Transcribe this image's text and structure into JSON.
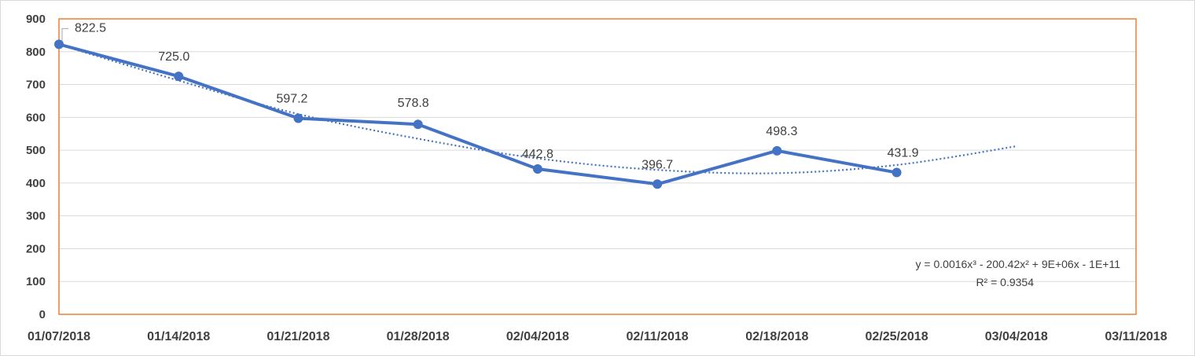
{
  "chart_data": {
    "type": "line",
    "title": "",
    "xlabel": "",
    "ylabel": "",
    "x_ticks": [
      "01/07/2018",
      "01/14/2018",
      "01/21/2018",
      "01/28/2018",
      "02/04/2018",
      "02/11/2018",
      "02/18/2018",
      "02/25/2018",
      "03/04/2018",
      "03/11/2018"
    ],
    "y_ticks": [
      "0",
      "100",
      "200",
      "300",
      "400",
      "500",
      "600",
      "700",
      "800",
      "900"
    ],
    "ylim": [
      0,
      900
    ],
    "grid": "horizontal",
    "series": [
      {
        "x": [
          "01/07/2018",
          "01/14/2018",
          "01/21/2018",
          "01/28/2018",
          "02/04/2018",
          "02/11/2018",
          "02/18/2018",
          "02/25/2018"
        ],
        "values": [
          822.5,
          725.0,
          597.2,
          578.8,
          442.8,
          396.7,
          498.3,
          431.9
        ],
        "labels": [
          "822.5",
          "725.0",
          "597.2",
          "578.8",
          "442.8",
          "396.7",
          "498.3",
          "431.9"
        ],
        "color": "#4472c4"
      }
    ],
    "trendline": {
      "type": "polynomial",
      "order": 3,
      "style": "dotted",
      "color": "#4472c4",
      "x": [
        "01/07/2018",
        "01/14/2018",
        "01/21/2018",
        "01/28/2018",
        "02/04/2018",
        "02/11/2018",
        "02/18/2018",
        "02/25/2018",
        "03/04/2018"
      ],
      "values": [
        822,
        712,
        610,
        535,
        475,
        440,
        430,
        455,
        512
      ],
      "equation_text": "y = 0.0016x³ - 200.42x² + 9E+06x - 1E+11",
      "r2_text": "R² = 0.9354"
    },
    "plot_area_border_color": "#ed7d31",
    "gridline_color": "#d9d9d9"
  }
}
